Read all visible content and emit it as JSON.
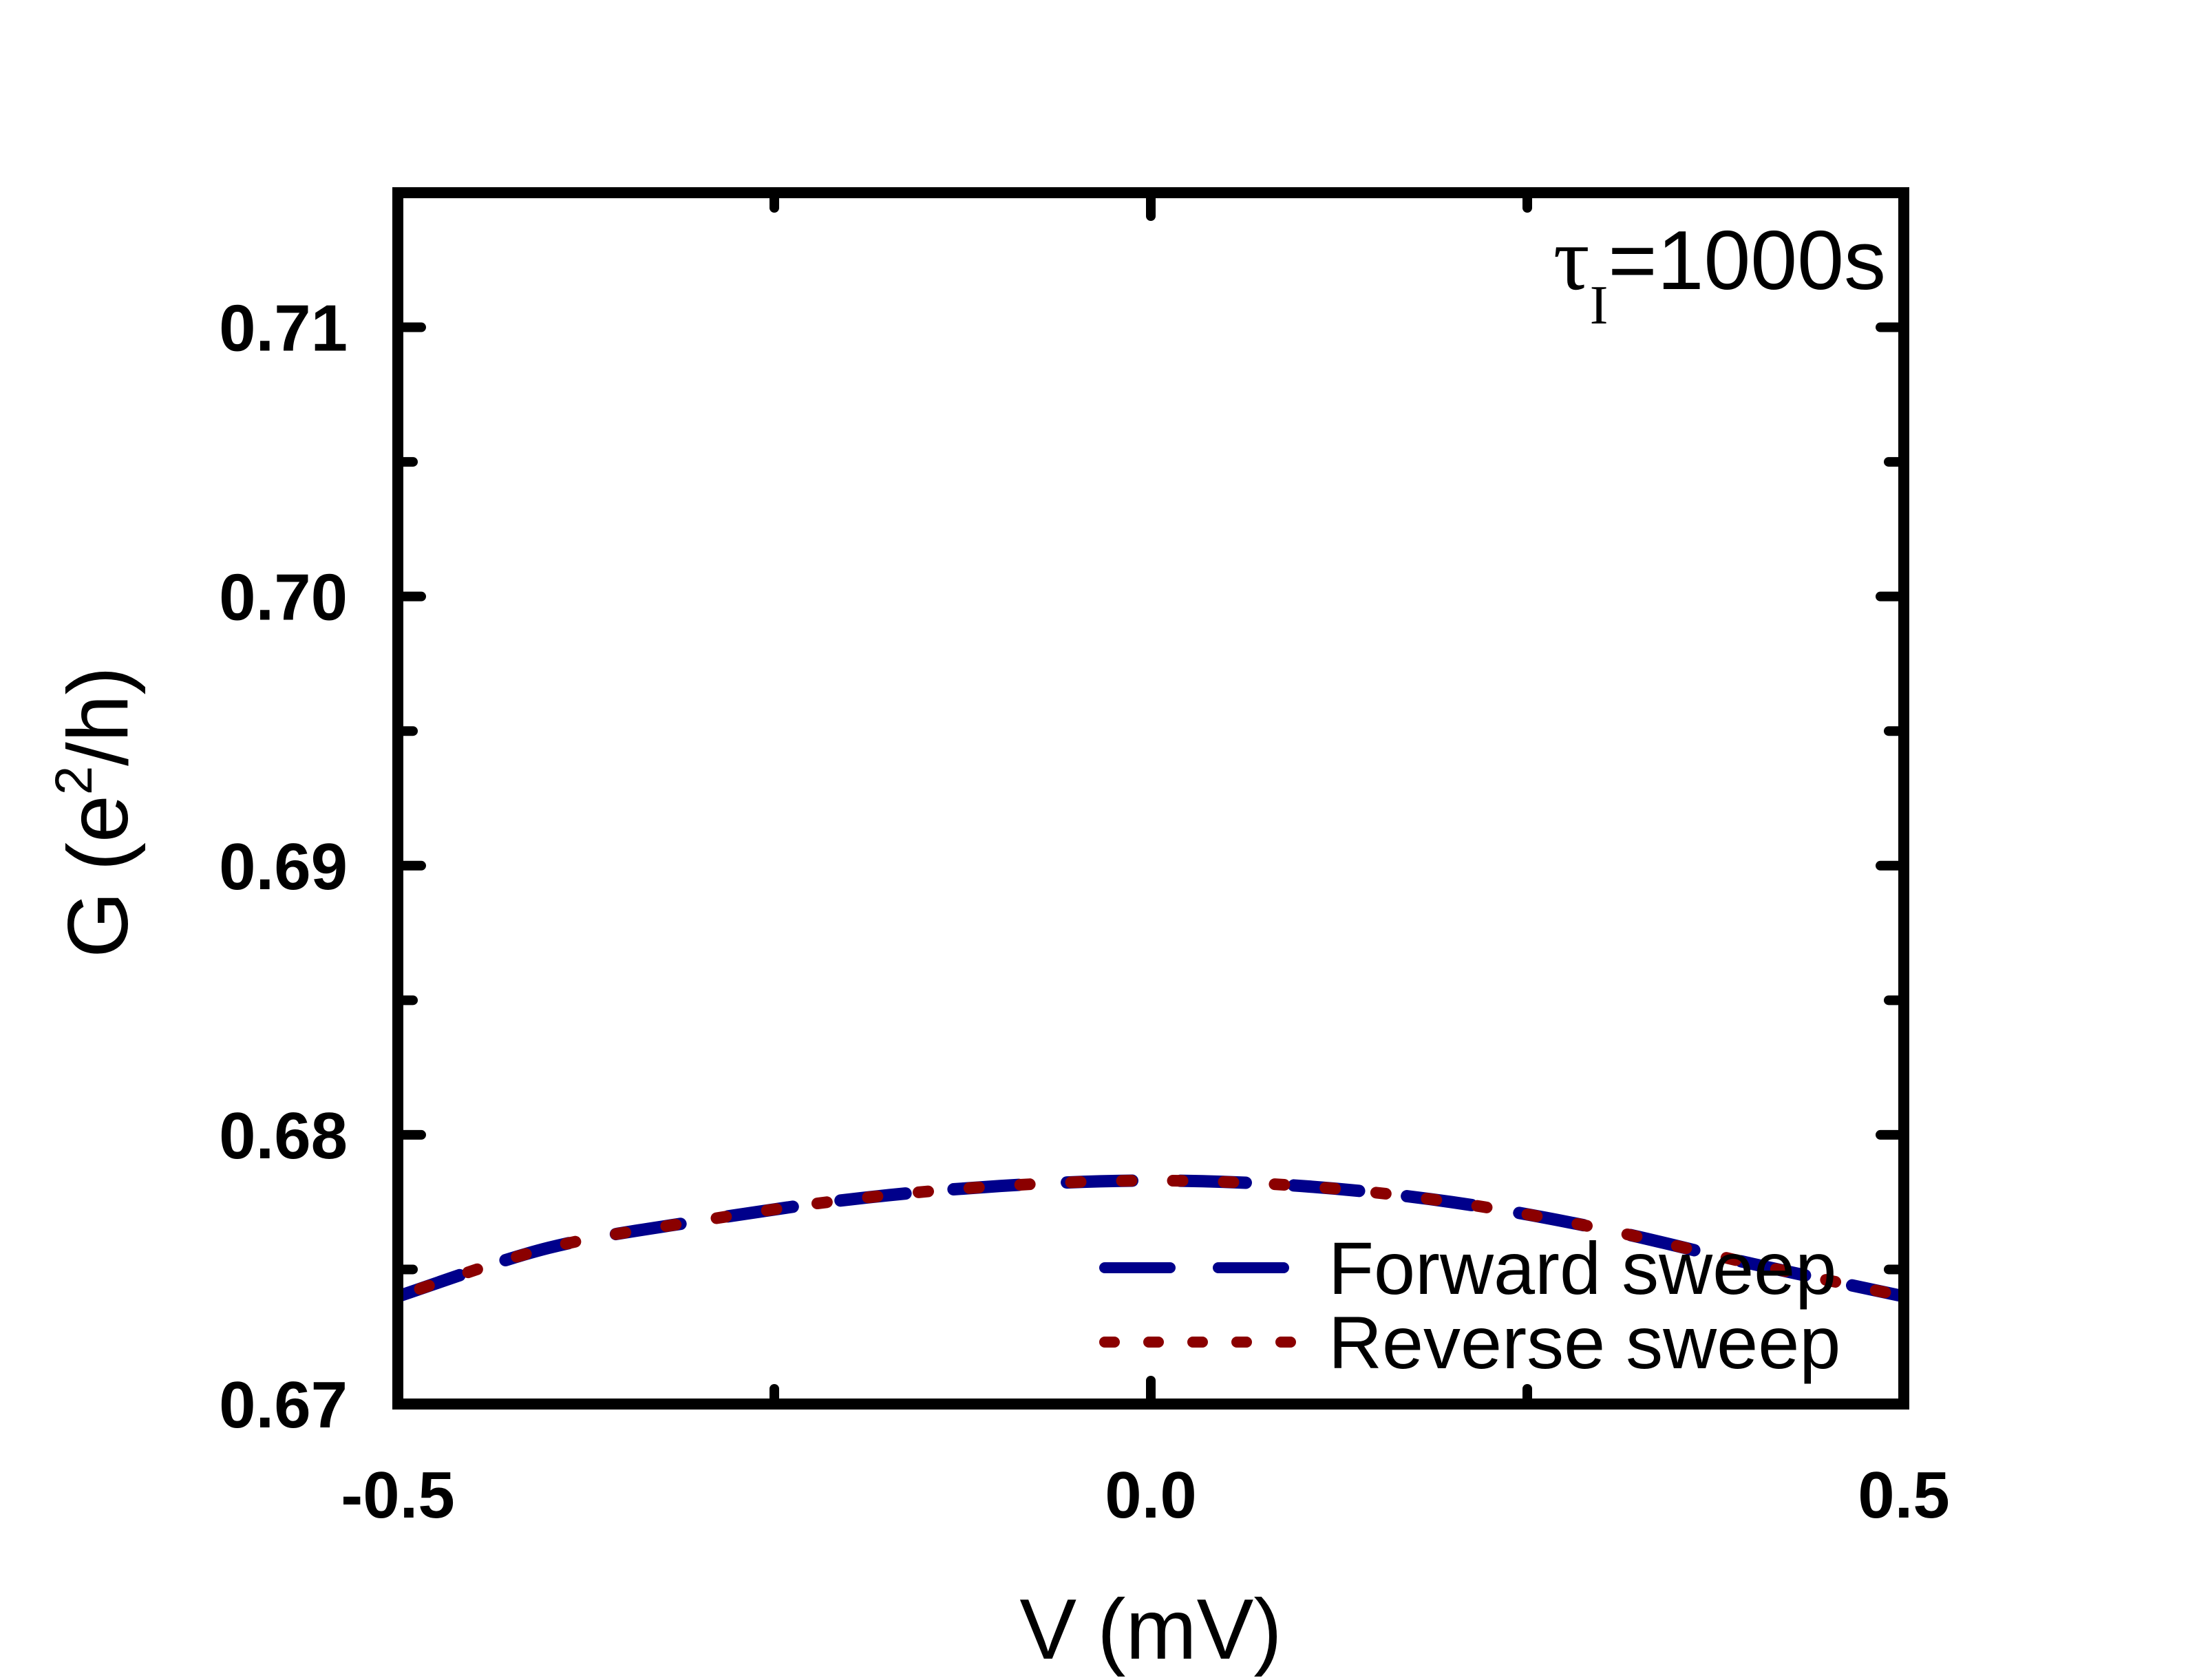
{
  "chart_data": {
    "type": "line",
    "xlabel": {
      "symbol": "V",
      "unit": "(mV)"
    },
    "ylabel": {
      "symbol": "G",
      "unit_open": "(e",
      "unit_sup": "2",
      "unit_close": "/h)"
    },
    "xlim": [
      -0.5,
      0.5
    ],
    "ylim": [
      0.67,
      0.715
    ],
    "x_ticks": [
      "-0.5",
      "0.0",
      "0.5"
    ],
    "x_tick_values": [
      -0.5,
      0.0,
      0.5
    ],
    "y_ticks": [
      "0.67",
      "0.68",
      "0.69",
      "0.70",
      "0.71"
    ],
    "y_tick_values": [
      0.67,
      0.68,
      0.69,
      0.7,
      0.71
    ],
    "annotation": {
      "symbol": "τ",
      "subscript": "I",
      "value": "=1000s"
    },
    "legend_position": "bottom-right",
    "series": [
      {
        "name": "Forward sweep",
        "style": "dashed",
        "color": "#00008B",
        "x": [
          -0.5,
          -0.4,
          -0.3,
          -0.2,
          -0.1,
          0.0,
          0.1,
          0.2,
          0.3,
          0.4,
          0.5
        ],
        "y": [
          0.674,
          0.6758,
          0.6768,
          0.6776,
          0.6781,
          0.6783,
          0.6781,
          0.6775,
          0.6765,
          0.6752,
          0.674
        ]
      },
      {
        "name": "Reverse sweep",
        "style": "dotted",
        "color": "#8B0000",
        "x": [
          -0.5,
          -0.4,
          -0.3,
          -0.2,
          -0.1,
          0.0,
          0.1,
          0.2,
          0.3,
          0.4,
          0.5
        ],
        "y": [
          0.674,
          0.6758,
          0.6768,
          0.6776,
          0.6781,
          0.6783,
          0.6781,
          0.6775,
          0.6765,
          0.6752,
          0.674
        ]
      }
    ]
  }
}
